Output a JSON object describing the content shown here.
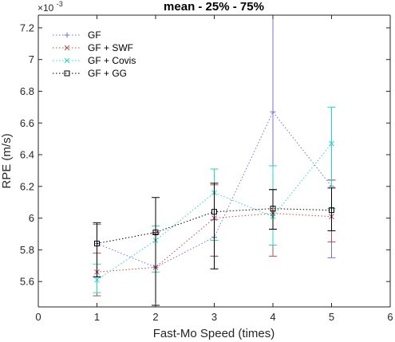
{
  "chart_data": {
    "type": "line",
    "title": "mean - 25% - 75%",
    "xlabel": "Fast-Mo Speed (times)",
    "ylabel": "RPE (m/s)",
    "y_exponent_label": "×10",
    "y_exponent_power": "-3",
    "xlim": [
      0,
      6
    ],
    "ylim": [
      5.44,
      7.28
    ],
    "x_ticks": [
      0,
      1,
      2,
      3,
      4,
      5,
      6
    ],
    "y_ticks": [
      5.6,
      5.8,
      6,
      6.2,
      6.4,
      6.6,
      6.8,
      7,
      7.2
    ],
    "x_tick_labels": [
      "0",
      "1",
      "2",
      "3",
      "4",
      "5",
      "6"
    ],
    "y_tick_labels": [
      "5.6",
      "5.8",
      "6",
      "6.2",
      "6.4",
      "6.6",
      "6.8",
      "7",
      "7.2"
    ],
    "grid": false,
    "legend_position": "top-left",
    "series": [
      {
        "name": "GF",
        "color": "#7070dd",
        "marker": "plus",
        "x": [
          1,
          2,
          3,
          4,
          5
        ],
        "y": [
          5.84,
          5.69,
          5.88,
          6.67,
          6.2
        ],
        "lower": [
          5.63,
          5.45,
          5.76,
          5.93,
          5.75
        ],
        "upper": [
          5.96,
          5.91,
          5.99,
          7.28,
          6.24
        ]
      },
      {
        "name": "GF + SWF",
        "color": "#b05050",
        "marker": "x",
        "x": [
          1,
          2,
          3,
          4,
          5
        ],
        "y": [
          5.66,
          5.69,
          6.0,
          6.03,
          6.01
        ],
        "lower": [
          5.51,
          5.45,
          5.76,
          5.76,
          5.85
        ],
        "upper": [
          5.78,
          5.9,
          6.21,
          6.18,
          6.24
        ]
      },
      {
        "name": "GF + Covis",
        "color": "#20d8c0",
        "marker": "x",
        "x": [
          1,
          2,
          3,
          4,
          5
        ],
        "y": [
          5.61,
          5.86,
          6.16,
          6.01,
          6.47
        ],
        "lower": [
          5.53,
          5.66,
          5.86,
          5.83,
          6.06
        ],
        "upper": [
          5.71,
          5.95,
          6.31,
          6.33,
          6.7
        ]
      },
      {
        "name": "GF + GG",
        "color": "#000000",
        "marker": "square",
        "x": [
          1,
          2,
          3,
          4,
          5
        ],
        "y": [
          5.84,
          5.91,
          6.04,
          6.06,
          6.05
        ],
        "lower": [
          5.63,
          5.45,
          5.68,
          5.93,
          5.92
        ],
        "upper": [
          5.97,
          6.13,
          6.22,
          6.18,
          6.19
        ]
      }
    ]
  }
}
